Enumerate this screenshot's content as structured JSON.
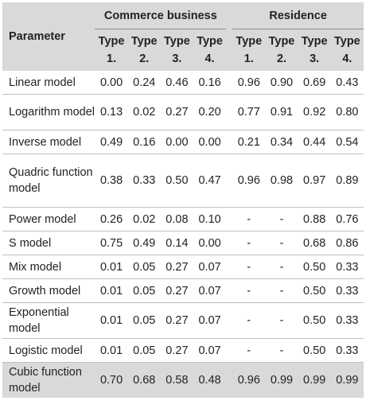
{
  "header": {
    "parameter": "Parameter",
    "group1": "Commerce business",
    "group2": "Residence",
    "types": [
      "Type 1.",
      "Type 2.",
      "Type 3.",
      "Type 4."
    ]
  },
  "rows": [
    {
      "name": "Linear model",
      "c": [
        "0.00",
        "0.24",
        "0.46",
        "0.16"
      ],
      "r": [
        "0.96",
        "0.90",
        "0.69",
        "0.43"
      ]
    },
    {
      "name": "Logarithm model",
      "c": [
        "0.13",
        "0.02",
        "0.27",
        "0.20"
      ],
      "r": [
        "0.77",
        "0.91",
        "0.92",
        "0.80"
      ]
    },
    {
      "name": "Inverse model",
      "c": [
        "0.49",
        "0.16",
        "0.00",
        "0.00"
      ],
      "r": [
        "0.21",
        "0.34",
        "0.44",
        "0.54"
      ]
    },
    {
      "name": "Quadric function model",
      "c": [
        "0.38",
        "0.33",
        "0.50",
        "0.47"
      ],
      "r": [
        "0.96",
        "0.98",
        "0.97",
        "0.89"
      ]
    },
    {
      "name": "Power model",
      "c": [
        "0.26",
        "0.02",
        "0.08",
        "0.10"
      ],
      "r": [
        "-",
        "-",
        "0.88",
        "0.76"
      ]
    },
    {
      "name": "S model",
      "c": [
        "0.75",
        "0.49",
        "0.14",
        "0.00"
      ],
      "r": [
        "-",
        "-",
        "0.68",
        "0.86"
      ]
    },
    {
      "name": "Mix model",
      "c": [
        "0.01",
        "0.05",
        "0.27",
        "0.07"
      ],
      "r": [
        "-",
        "-",
        "0.50",
        "0.33"
      ]
    },
    {
      "name": "Growth model",
      "c": [
        "0.01",
        "0.05",
        "0.27",
        "0.07"
      ],
      "r": [
        "-",
        "-",
        "0.50",
        "0.33"
      ]
    },
    {
      "name": "Exponential model",
      "c": [
        "0.01",
        "0.05",
        "0.27",
        "0.07"
      ],
      "r": [
        "-",
        "-",
        "0.50",
        "0.33"
      ]
    },
    {
      "name": "Logistic model",
      "c": [
        "0.01",
        "0.05",
        "0.27",
        "0.07"
      ],
      "r": [
        "-",
        "-",
        "0.50",
        "0.33"
      ]
    },
    {
      "name": "Cubic function model",
      "c": [
        "0.70",
        "0.68",
        "0.58",
        "0.48"
      ],
      "r": [
        "0.96",
        "0.99",
        "0.99",
        "0.99"
      ]
    }
  ]
}
